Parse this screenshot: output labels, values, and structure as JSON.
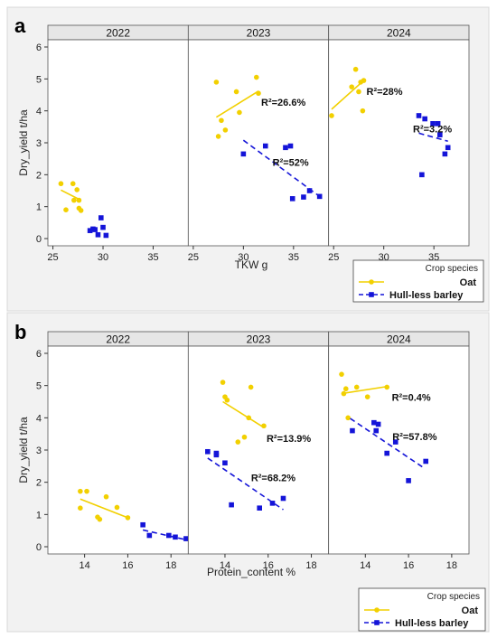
{
  "colors": {
    "oat": "#f2d000",
    "barley": "#1414d8",
    "strip": "#e6e6e6",
    "panel_background": "#f2f2f2"
  },
  "legend": {
    "title": "Crop species",
    "entries": [
      {
        "label": "Oat",
        "marker": "circle",
        "line": "solid"
      },
      {
        "label": "Hull-less barley",
        "marker": "square",
        "line": "dashed"
      }
    ]
  },
  "chart_data": [
    {
      "type": "scatter",
      "panel_letter": "a",
      "ylabel": "Dry_yield t/ha",
      "xlabel": "TKW g",
      "ylim": [
        0,
        6
      ],
      "yticks": [
        0,
        1,
        2,
        3,
        4,
        5,
        6
      ],
      "facets": [
        {
          "year": "2022",
          "xlim": [
            24.5,
            38.5
          ],
          "xticks": [
            25,
            30,
            35
          ],
          "series": [
            {
              "name": "Oat",
              "points": [
                [
                  25.8,
                  1.72
                ],
                [
                  26.3,
                  0.9
                ],
                [
                  27.0,
                  1.72
                ],
                [
                  27.1,
                  1.2
                ],
                [
                  27.4,
                  1.53
                ],
                [
                  27.6,
                  1.2
                ],
                [
                  27.6,
                  0.95
                ],
                [
                  27.8,
                  0.88
                ]
              ],
              "fit": {
                "x": [
                  25.8,
                  27.8
                ],
                "y": [
                  1.52,
                  1.2
                ]
              },
              "r2": ""
            },
            {
              "name": "Hull-less barley",
              "points": [
                [
                  28.7,
                  0.25
                ],
                [
                  29.0,
                  0.3
                ],
                [
                  29.2,
                  0.28
                ],
                [
                  29.5,
                  0.12
                ],
                [
                  29.8,
                  0.65
                ],
                [
                  30.0,
                  0.35
                ],
                [
                  30.3,
                  0.1
                ]
              ],
              "fit": null,
              "r2": ""
            }
          ]
        },
        {
          "year": "2023",
          "xlim": [
            24.5,
            38.5
          ],
          "xticks": [
            25,
            30,
            35
          ],
          "series": [
            {
              "name": "Oat",
              "points": [
                [
                  27.3,
                  4.9
                ],
                [
                  27.5,
                  3.2
                ],
                [
                  27.8,
                  3.7
                ],
                [
                  28.2,
                  3.4
                ],
                [
                  29.3,
                  4.6
                ],
                [
                  29.6,
                  3.95
                ],
                [
                  31.3,
                  5.05
                ],
                [
                  31.5,
                  4.55
                ]
              ],
              "fit": {
                "x": [
                  27.3,
                  31.5
                ],
                "y": [
                  3.8,
                  4.62
                ]
              },
              "r2": "R²=26.6%"
            },
            {
              "name": "Hull-less barley",
              "points": [
                [
                  30.0,
                  2.65
                ],
                [
                  32.2,
                  2.9
                ],
                [
                  34.2,
                  2.85
                ],
                [
                  34.7,
                  2.9
                ],
                [
                  34.9,
                  1.25
                ],
                [
                  36.0,
                  1.3
                ],
                [
                  36.6,
                  1.5
                ],
                [
                  37.6,
                  1.32
                ]
              ],
              "fit": {
                "x": [
                  30.0,
                  37.6
                ],
                "y": [
                  3.08,
                  1.32
                ]
              },
              "r2": "R²=52%"
            }
          ]
        },
        {
          "year": "2024",
          "xlim": [
            24.5,
            38.5
          ],
          "xticks": [
            25,
            30,
            35
          ],
          "series": [
            {
              "name": "Oat",
              "points": [
                [
                  24.8,
                  3.85
                ],
                [
                  26.8,
                  4.75
                ],
                [
                  27.2,
                  5.3
                ],
                [
                  27.5,
                  4.6
                ],
                [
                  27.7,
                  4.9
                ],
                [
                  27.9,
                  4.0
                ],
                [
                  28.0,
                  4.95
                ]
              ],
              "fit": {
                "x": [
                  24.8,
                  28.0
                ],
                "y": [
                  4.05,
                  4.95
                ]
              },
              "r2": "R²=28%"
            },
            {
              "name": "Hull-less barley",
              "points": [
                [
                  33.5,
                  3.85
                ],
                [
                  33.8,
                  2.0
                ],
                [
                  34.1,
                  3.75
                ],
                [
                  34.9,
                  3.6
                ],
                [
                  35.4,
                  3.6
                ],
                [
                  35.6,
                  3.25
                ],
                [
                  36.1,
                  2.65
                ],
                [
                  36.4,
                  2.85
                ]
              ],
              "fit": {
                "x": [
                  33.5,
                  36.4
                ],
                "y": [
                  3.3,
                  3.05
                ]
              },
              "r2": "R²=3.2%"
            }
          ]
        }
      ]
    },
    {
      "type": "scatter",
      "panel_letter": "b",
      "ylabel": "Dry_yield t/ha",
      "xlabel": "Protein_content %",
      "ylim": [
        0,
        6
      ],
      "yticks": [
        0,
        1,
        2,
        3,
        4,
        5,
        6
      ],
      "facets": [
        {
          "year": "2022",
          "xlim": [
            12.3,
            18.8
          ],
          "xticks": [
            14,
            16,
            18
          ],
          "series": [
            {
              "name": "Oat",
              "points": [
                [
                  13.8,
                  1.2
                ],
                [
                  13.8,
                  1.72
                ],
                [
                  14.1,
                  1.72
                ],
                [
                  14.6,
                  0.92
                ],
                [
                  14.7,
                  0.85
                ],
                [
                  15.0,
                  1.55
                ],
                [
                  15.5,
                  1.22
                ],
                [
                  16.0,
                  0.9
                ]
              ],
              "fit": {
                "x": [
                  13.8,
                  16.0
                ],
                "y": [
                  1.48,
                  0.9
                ]
              },
              "r2": ""
            },
            {
              "name": "Hull-less barley",
              "points": [
                [
                  16.7,
                  0.68
                ],
                [
                  17.0,
                  0.35
                ],
                [
                  17.9,
                  0.35
                ],
                [
                  18.2,
                  0.3
                ],
                [
                  18.7,
                  0.25
                ]
              ],
              "fit": {
                "x": [
                  16.7,
                  18.8
                ],
                "y": [
                  0.52,
                  0.2
                ]
              },
              "r2": ""
            }
          ]
        },
        {
          "year": "2023",
          "xlim": [
            12.3,
            18.8
          ],
          "xticks": [
            14,
            16,
            18
          ],
          "series": [
            {
              "name": "Oat",
              "points": [
                [
                  13.9,
                  5.1
                ],
                [
                  14.0,
                  4.65
                ],
                [
                  14.1,
                  4.55
                ],
                [
                  14.6,
                  3.25
                ],
                [
                  14.9,
                  3.4
                ],
                [
                  15.1,
                  4.0
                ],
                [
                  15.2,
                  4.95
                ],
                [
                  15.8,
                  3.75
                ]
              ],
              "fit": {
                "x": [
                  13.9,
                  15.8
                ],
                "y": [
                  4.5,
                  3.7
                ]
              },
              "r2": "R²=13.9%"
            },
            {
              "name": "Hull-less barley",
              "points": [
                [
                  13.2,
                  2.95
                ],
                [
                  13.6,
                  2.9
                ],
                [
                  13.6,
                  2.85
                ],
                [
                  14.0,
                  2.6
                ],
                [
                  14.3,
                  1.3
                ],
                [
                  15.6,
                  1.2
                ],
                [
                  16.2,
                  1.35
                ],
                [
                  16.7,
                  1.5
                ]
              ],
              "fit": {
                "x": [
                  13.2,
                  16.7
                ],
                "y": [
                  2.75,
                  1.15
                ]
              },
              "r2": "R²=68.2%"
            }
          ]
        },
        {
          "year": "2024",
          "xlim": [
            12.3,
            18.8
          ],
          "xticks": [
            14,
            16,
            18
          ],
          "series": [
            {
              "name": "Oat",
              "points": [
                [
                  12.9,
                  5.35
                ],
                [
                  13.0,
                  4.75
                ],
                [
                  13.1,
                  4.9
                ],
                [
                  13.2,
                  4.0
                ],
                [
                  13.6,
                  4.95
                ],
                [
                  14.1,
                  4.65
                ],
                [
                  15.0,
                  4.95
                ]
              ],
              "fit": {
                "x": [
                  12.9,
                  15.1
                ],
                "y": [
                  4.75,
                  4.98
                ]
              },
              "r2": "R²=0.4%"
            },
            {
              "name": "Hull-less barley",
              "points": [
                [
                  13.4,
                  3.6
                ],
                [
                  14.4,
                  3.85
                ],
                [
                  14.5,
                  3.6
                ],
                [
                  14.6,
                  3.8
                ],
                [
                  15.0,
                  2.9
                ],
                [
                  15.4,
                  3.25
                ],
                [
                  16.0,
                  2.05
                ],
                [
                  16.8,
                  2.65
                ]
              ],
              "fit": {
                "x": [
                  13.3,
                  16.7
                ],
                "y": [
                  3.98,
                  2.45
                ]
              },
              "r2": "R²=57.8%"
            }
          ]
        }
      ]
    }
  ]
}
